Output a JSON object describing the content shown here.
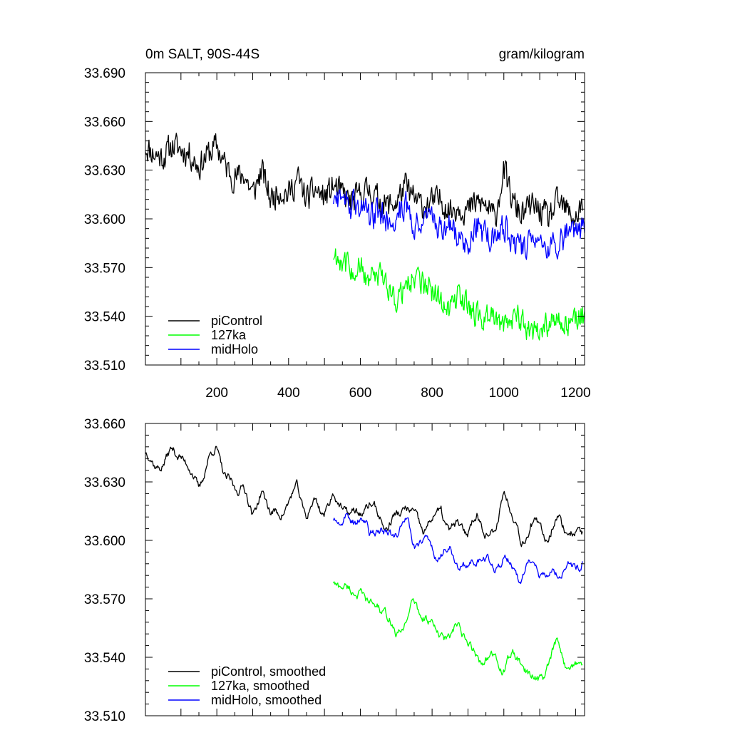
{
  "chart_data": [
    {
      "id": "top",
      "type": "line",
      "title_left": "0m SALT, 90S-44S",
      "title_right": "gram/kilogram",
      "xlabel": "",
      "ylabel": "",
      "xlim": [
        1,
        1225
      ],
      "ylim": [
        33.51,
        33.69
      ],
      "xticks": [
        200,
        400,
        600,
        800,
        1000,
        1200
      ],
      "xtick_labels": [
        "200",
        "400",
        "600",
        "800",
        "1000",
        "1200"
      ],
      "show_x_tick_labels": true,
      "yticks": [
        33.51,
        33.54,
        33.57,
        33.6,
        33.63,
        33.66,
        33.69
      ],
      "ytick_labels": [
        "33.510",
        "33.540",
        "33.570",
        "33.600",
        "33.630",
        "33.660",
        "33.690"
      ],
      "grid": false,
      "legend_position": "bottom-left",
      "series": [
        {
          "name": "piControl",
          "color": "#000000",
          "x": [
            1,
            25,
            50,
            75,
            100,
            125,
            150,
            175,
            200,
            225,
            250,
            275,
            300,
            325,
            350,
            375,
            400,
            425,
            450,
            475,
            500,
            525,
            550,
            575,
            600,
            625,
            650,
            675,
            700,
            725,
            750,
            775,
            800,
            825,
            850,
            875,
            900,
            925,
            950,
            975,
            1000,
            1025,
            1050,
            1075,
            1100,
            1125,
            1150,
            1175,
            1200,
            1220
          ],
          "y": [
            33.645,
            33.64,
            33.638,
            33.645,
            33.643,
            33.64,
            33.632,
            33.64,
            33.645,
            33.632,
            33.625,
            33.628,
            33.615,
            33.63,
            33.612,
            33.618,
            33.615,
            33.625,
            33.612,
            33.618,
            33.613,
            33.62,
            33.615,
            33.61,
            33.615,
            33.618,
            33.612,
            33.608,
            33.61,
            33.62,
            33.612,
            33.608,
            33.61,
            33.612,
            33.605,
            33.608,
            33.605,
            33.61,
            33.608,
            33.6,
            33.63,
            33.61,
            33.602,
            33.608,
            33.605,
            33.6,
            33.61,
            33.605,
            33.6,
            33.61
          ],
          "amplitude": 0.012
        },
        {
          "name": "127ka",
          "color": "#00ff00",
          "x": [
            525,
            550,
            575,
            600,
            625,
            650,
            675,
            700,
            725,
            750,
            775,
            800,
            825,
            850,
            875,
            900,
            925,
            950,
            975,
            1000,
            1025,
            1050,
            1075,
            1100,
            1125,
            1150,
            1175,
            1200,
            1225
          ],
          "y": [
            33.578,
            33.575,
            33.568,
            33.57,
            33.562,
            33.565,
            33.56,
            33.55,
            33.558,
            33.565,
            33.56,
            33.555,
            33.55,
            33.545,
            33.555,
            33.545,
            33.54,
            33.54,
            33.538,
            33.535,
            33.54,
            33.538,
            33.53,
            33.53,
            33.535,
            33.54,
            33.535,
            33.538,
            33.54
          ],
          "amplitude": 0.011
        },
        {
          "name": "midHolo",
          "color": "#0000ff",
          "x": [
            525,
            550,
            575,
            600,
            625,
            650,
            675,
            700,
            725,
            750,
            775,
            800,
            825,
            850,
            875,
            900,
            925,
            950,
            975,
            1000,
            1025,
            1050,
            1075,
            1100,
            1125,
            1150,
            1175,
            1200,
            1225
          ],
          "y": [
            33.612,
            33.61,
            33.608,
            33.61,
            33.6,
            33.605,
            33.6,
            33.602,
            33.61,
            33.598,
            33.6,
            33.598,
            33.592,
            33.595,
            33.59,
            33.585,
            33.595,
            33.59,
            33.588,
            33.595,
            33.588,
            33.58,
            33.59,
            33.585,
            33.585,
            33.585,
            33.59,
            33.588,
            33.595
          ],
          "amplitude": 0.012
        }
      ]
    },
    {
      "id": "bottom",
      "type": "line",
      "title_left": "",
      "title_right": "",
      "xlabel": "",
      "ylabel": "",
      "xlim": [
        1,
        1225
      ],
      "ylim": [
        33.51,
        33.66
      ],
      "xticks": [
        200,
        400,
        600,
        800,
        1000,
        1200
      ],
      "xtick_labels": [
        "",
        "",
        "",
        "",
        "",
        ""
      ],
      "show_x_tick_labels": false,
      "yticks": [
        33.51,
        33.54,
        33.57,
        33.6,
        33.63,
        33.66
      ],
      "ytick_labels": [
        "33.510",
        "33.540",
        "33.570",
        "33.600",
        "33.630",
        "33.660"
      ],
      "grid": false,
      "legend_position": "bottom-left",
      "series": [
        {
          "name": "piControl, smoothed",
          "color": "#000000",
          "x": [
            1,
            25,
            50,
            75,
            100,
            125,
            150,
            175,
            200,
            225,
            250,
            275,
            300,
            325,
            350,
            375,
            400,
            425,
            450,
            475,
            500,
            525,
            550,
            575,
            600,
            625,
            650,
            675,
            700,
            725,
            750,
            775,
            800,
            825,
            850,
            875,
            900,
            925,
            950,
            975,
            1000,
            1025,
            1050,
            1075,
            1100,
            1125,
            1150,
            1175,
            1200,
            1220
          ],
          "y": [
            33.645,
            33.638,
            33.64,
            33.645,
            33.645,
            33.635,
            33.628,
            33.64,
            33.648,
            33.632,
            33.625,
            33.63,
            33.61,
            33.628,
            33.612,
            33.615,
            33.618,
            33.628,
            33.612,
            33.62,
            33.615,
            33.622,
            33.618,
            33.612,
            33.615,
            33.618,
            33.614,
            33.606,
            33.612,
            33.618,
            33.612,
            33.606,
            33.61,
            33.616,
            33.604,
            33.608,
            33.605,
            33.612,
            33.606,
            33.6,
            33.628,
            33.612,
            33.6,
            33.608,
            33.606,
            33.602,
            33.612,
            33.606,
            33.602,
            33.605
          ],
          "amplitude": 0.006
        },
        {
          "name": "127ka, smoothed",
          "color": "#00ff00",
          "x": [
            525,
            550,
            575,
            600,
            625,
            650,
            675,
            700,
            725,
            750,
            775,
            800,
            825,
            850,
            875,
            900,
            925,
            950,
            975,
            1000,
            1025,
            1050,
            1075,
            1100,
            1125,
            1150,
            1175,
            1200,
            1220
          ],
          "y": [
            33.578,
            33.578,
            33.572,
            33.575,
            33.565,
            33.568,
            33.56,
            33.552,
            33.558,
            33.568,
            33.562,
            33.555,
            33.552,
            33.548,
            33.558,
            33.545,
            33.54,
            33.54,
            33.538,
            33.535,
            33.54,
            33.538,
            33.528,
            33.53,
            33.535,
            33.548,
            33.535,
            33.535,
            33.54
          ],
          "amplitude": 0.006
        },
        {
          "name": "midHolo, smoothed",
          "color": "#0000ff",
          "x": [
            525,
            550,
            575,
            600,
            625,
            650,
            675,
            700,
            725,
            750,
            775,
            800,
            825,
            850,
            875,
            900,
            925,
            950,
            975,
            1000,
            1025,
            1050,
            1075,
            1100,
            1125,
            1150,
            1175,
            1200,
            1220
          ],
          "y": [
            33.612,
            33.61,
            33.61,
            33.612,
            33.602,
            33.608,
            33.602,
            33.604,
            33.612,
            33.598,
            33.6,
            33.596,
            33.592,
            33.594,
            33.588,
            33.584,
            33.592,
            33.588,
            33.586,
            33.592,
            33.586,
            33.58,
            33.588,
            33.584,
            33.582,
            33.584,
            33.588,
            33.586,
            33.59
          ],
          "amplitude": 0.006
        }
      ]
    }
  ]
}
